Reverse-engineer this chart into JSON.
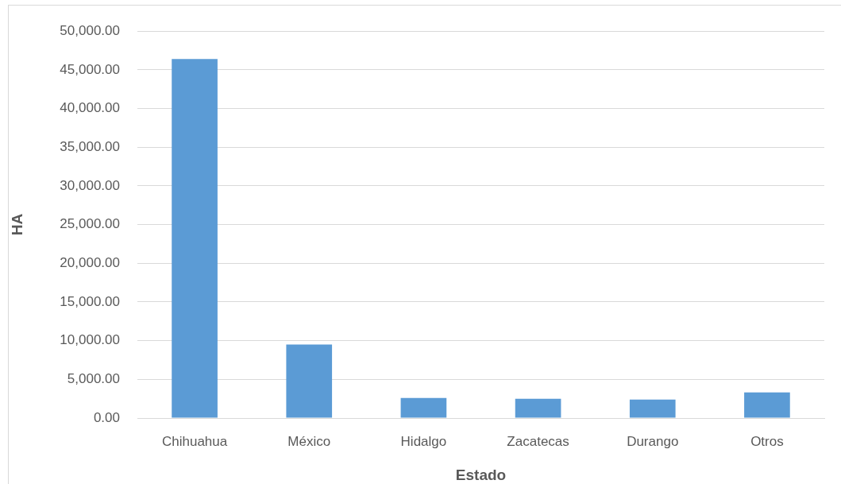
{
  "chart_data": {
    "type": "bar",
    "xlabel": "Estado",
    "ylabel": "HA",
    "categories": [
      "Chihuahua",
      "México",
      "Hidalgo",
      "Zacatecas",
      "Durango",
      "Otros"
    ],
    "values": [
      46400,
      9500,
      2600,
      2500,
      2400,
      3300
    ],
    "color": "#5b9bd5",
    "ylim": [
      0,
      50000
    ],
    "yticks": [
      {
        "value": 0,
        "label": "0.00"
      },
      {
        "value": 5000,
        "label": "5,000.00"
      },
      {
        "value": 10000,
        "label": "10,000.00"
      },
      {
        "value": 15000,
        "label": "15,000.00"
      },
      {
        "value": 20000,
        "label": "20,000.00"
      },
      {
        "value": 25000,
        "label": "25,000.00"
      },
      {
        "value": 30000,
        "label": "30,000.00"
      },
      {
        "value": 35000,
        "label": "35,000.00"
      },
      {
        "value": 40000,
        "label": "40,000.00"
      },
      {
        "value": 45000,
        "label": "45,000.00"
      },
      {
        "value": 50000,
        "label": "50,000.00"
      }
    ],
    "grid": "y"
  }
}
